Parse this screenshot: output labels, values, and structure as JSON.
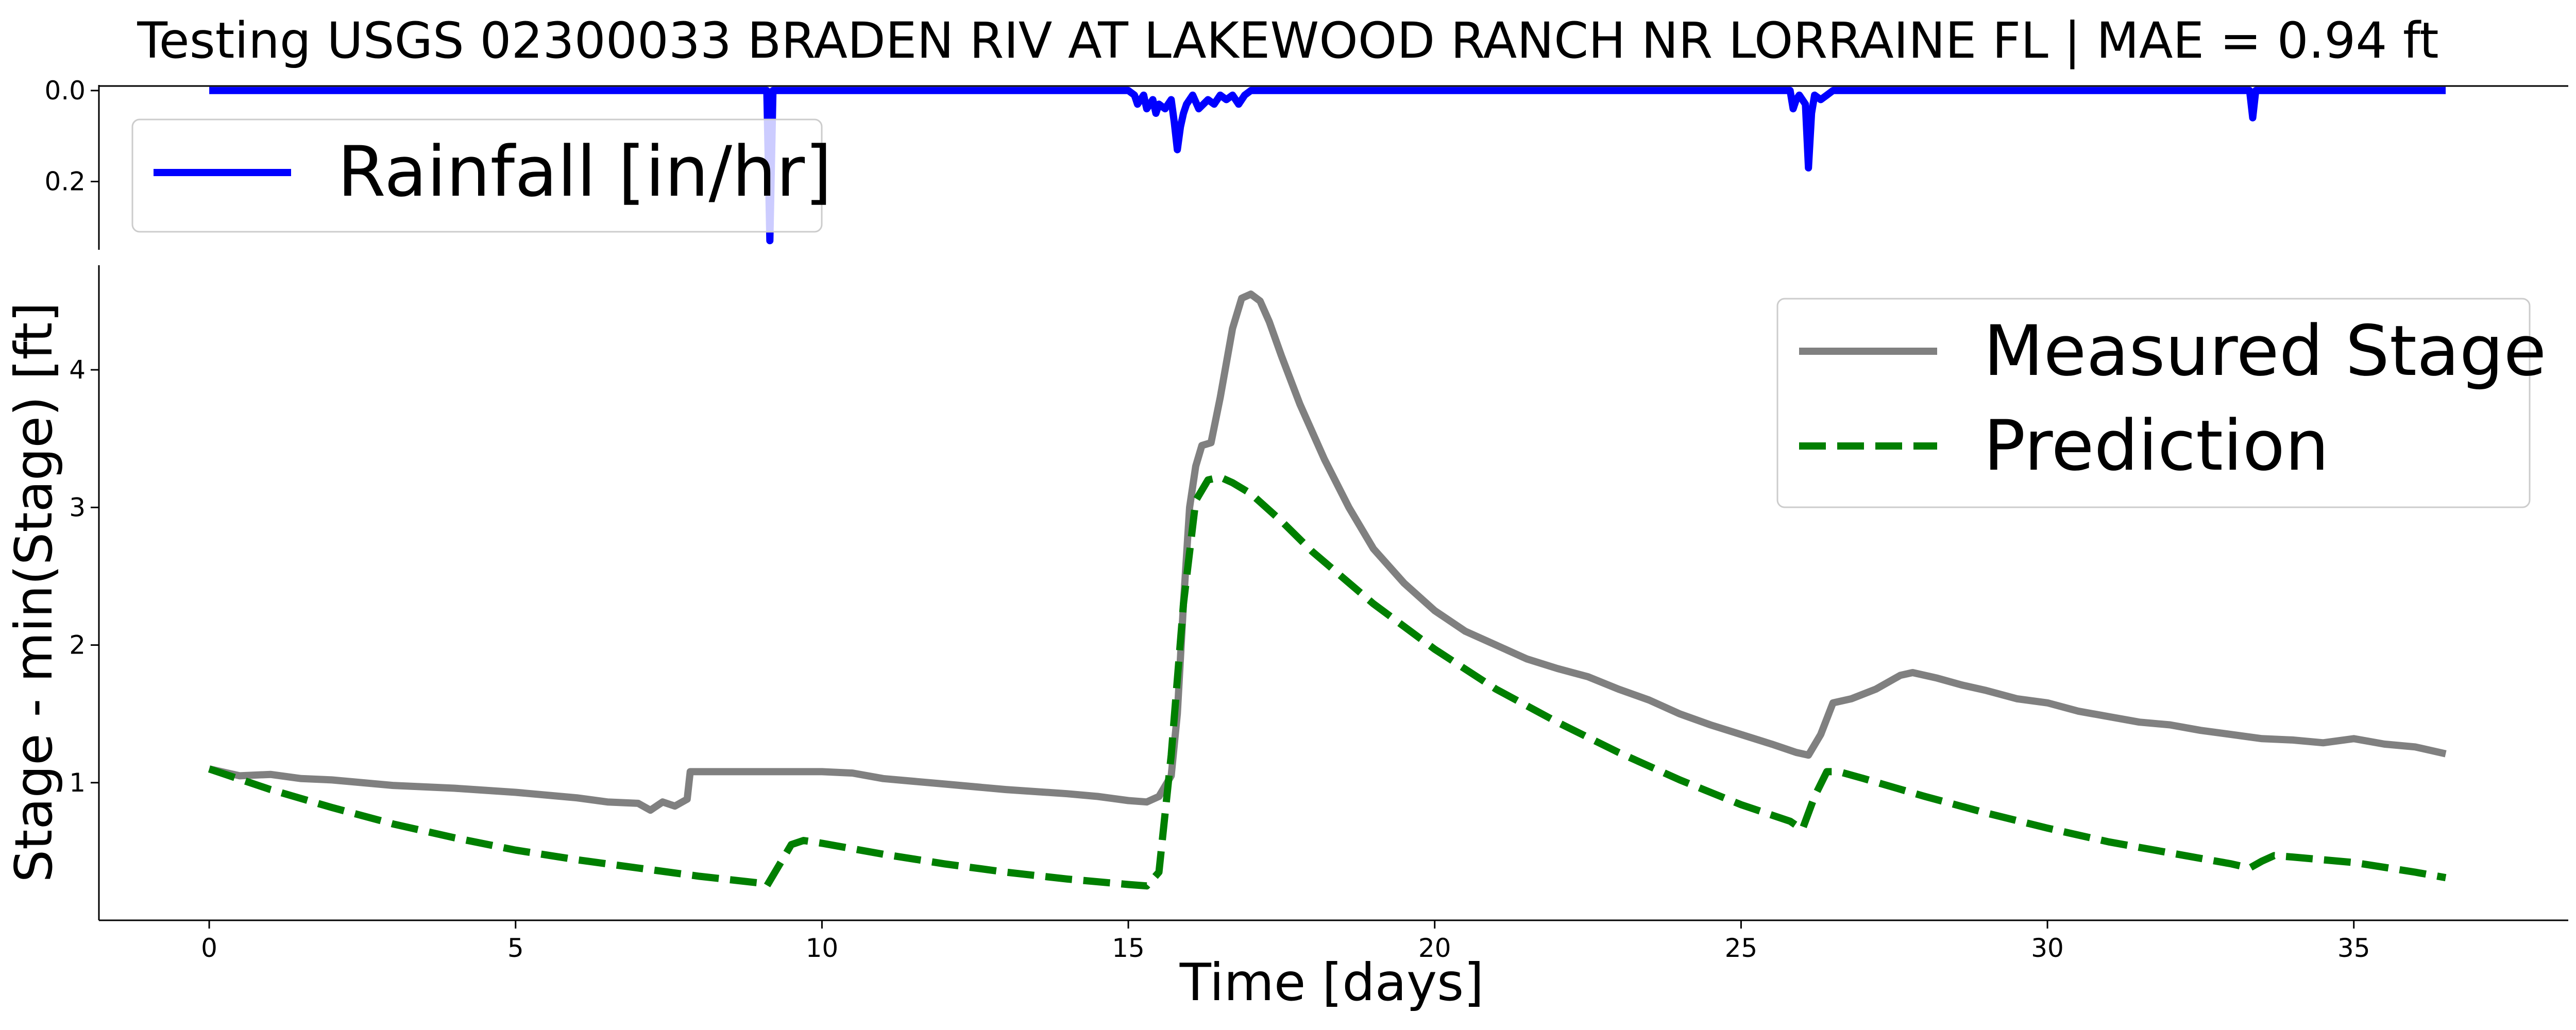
{
  "chart_data": [
    {
      "type": "line",
      "title": "Testing USGS 02300033 BRADEN RIV AT LAKEWOOD RANCH NR LORRAINE FL | MAE = 0.94 ft",
      "ylabel": "",
      "xlim": [
        -1.8,
        38.5
      ],
      "ylim": [
        0.35,
        -0.01
      ],
      "y_inverted": true,
      "yticks": [
        "0.0",
        "0.2"
      ],
      "legend": "upper-left",
      "series": [
        {
          "name": "Rainfall [in/hr]",
          "color": "#0000ff",
          "x": [
            0,
            9.1,
            9.15,
            9.2,
            15.0,
            15.1,
            15.15,
            15.25,
            15.3,
            15.4,
            15.45,
            15.5,
            15.6,
            15.7,
            15.75,
            15.8,
            15.85,
            15.9,
            15.95,
            16.05,
            16.15,
            16.3,
            16.4,
            16.5,
            16.6,
            16.7,
            16.8,
            16.9,
            17.0,
            25.8,
            25.85,
            25.9,
            25.95,
            26.05,
            26.1,
            26.15,
            26.2,
            26.3,
            26.4,
            26.5,
            33.3,
            33.35,
            33.4,
            36.5
          ],
          "values": [
            0,
            0,
            0.33,
            0,
            0,
            0.01,
            0.03,
            0.01,
            0.04,
            0.02,
            0.05,
            0.03,
            0.04,
            0.02,
            0.07,
            0.13,
            0.08,
            0.05,
            0.03,
            0.01,
            0.04,
            0.02,
            0.03,
            0.01,
            0.02,
            0.01,
            0.03,
            0.01,
            0,
            0,
            0.04,
            0.02,
            0.01,
            0.03,
            0.17,
            0.05,
            0.01,
            0.02,
            0.01,
            0,
            0,
            0.06,
            0,
            0
          ]
        }
      ]
    },
    {
      "type": "line",
      "title": "",
      "xlabel": "Time [days]",
      "ylabel": "Stage - min(Stage) [ft]",
      "xlim": [
        -1.8,
        38.5
      ],
      "ylim": [
        0.0,
        4.76
      ],
      "xticks": [
        "0",
        "5",
        "10",
        "15",
        "20",
        "25",
        "30",
        "35"
      ],
      "yticks": [
        "1",
        "2",
        "3",
        "4"
      ],
      "legend": "upper-right",
      "series": [
        {
          "name": "Measured Stage",
          "color": "#808080",
          "style": "solid",
          "x": [
            0,
            0.5,
            1,
            1.5,
            2,
            3,
            4,
            5,
            6,
            6.5,
            7,
            7.2,
            7.4,
            7.6,
            7.8,
            7.85,
            9,
            10,
            10.5,
            11,
            12,
            13,
            14,
            14.5,
            15,
            15.3,
            15.5,
            15.7,
            15.8,
            15.9,
            16,
            16.1,
            16.2,
            16.35,
            16.5,
            16.7,
            16.85,
            17.0,
            17.15,
            17.3,
            17.5,
            17.8,
            18.2,
            18.6,
            19.0,
            19.5,
            20.0,
            20.5,
            21.0,
            21.5,
            22,
            22.5,
            23,
            23.5,
            24,
            24.5,
            25,
            25.5,
            25.9,
            26.1,
            26.3,
            26.5,
            26.8,
            27.2,
            27.6,
            27.8,
            28.2,
            28.6,
            29,
            29.5,
            30,
            30.5,
            31,
            31.5,
            32,
            32.5,
            33,
            33.5,
            34,
            34.5,
            35,
            35.5,
            36,
            36.5
          ],
          "values": [
            1.1,
            1.05,
            1.06,
            1.03,
            1.02,
            0.98,
            0.96,
            0.93,
            0.89,
            0.86,
            0.85,
            0.8,
            0.86,
            0.83,
            0.88,
            1.08,
            1.08,
            1.08,
            1.07,
            1.03,
            0.99,
            0.95,
            0.92,
            0.9,
            0.87,
            0.86,
            0.9,
            1.05,
            1.5,
            2.3,
            3.0,
            3.3,
            3.45,
            3.47,
            3.8,
            4.3,
            4.52,
            4.55,
            4.5,
            4.35,
            4.1,
            3.75,
            3.35,
            3.0,
            2.7,
            2.45,
            2.25,
            2.1,
            2.0,
            1.9,
            1.83,
            1.77,
            1.68,
            1.6,
            1.5,
            1.42,
            1.35,
            1.28,
            1.22,
            1.2,
            1.35,
            1.58,
            1.61,
            1.68,
            1.78,
            1.8,
            1.76,
            1.71,
            1.67,
            1.61,
            1.58,
            1.52,
            1.48,
            1.44,
            1.42,
            1.38,
            1.35,
            1.32,
            1.31,
            1.29,
            1.32,
            1.28,
            1.26,
            1.21
          ]
        },
        {
          "name": "Prediction",
          "color": "#007f00",
          "style": "dashed",
          "x": [
            0,
            1,
            2,
            3,
            4,
            5,
            6,
            7,
            8,
            9,
            9.1,
            9.3,
            9.5,
            9.7,
            10,
            11,
            12,
            13,
            14,
            15,
            15.3,
            15.5,
            15.7,
            15.9,
            16.1,
            16.3,
            16.5,
            16.7,
            17,
            17.5,
            18,
            19,
            20,
            21,
            22,
            23,
            24,
            25,
            25.8,
            26.0,
            26.2,
            26.4,
            26.6,
            27,
            28,
            29,
            30,
            31,
            32,
            33,
            33.3,
            33.5,
            33.7,
            34,
            35,
            36,
            36.5
          ],
          "values": [
            1.1,
            0.95,
            0.82,
            0.7,
            0.6,
            0.51,
            0.44,
            0.38,
            0.32,
            0.27,
            0.25,
            0.4,
            0.55,
            0.58,
            0.56,
            0.48,
            0.41,
            0.35,
            0.3,
            0.26,
            0.25,
            0.35,
            1.2,
            2.3,
            3.05,
            3.2,
            3.22,
            3.18,
            3.1,
            2.9,
            2.68,
            2.3,
            1.97,
            1.68,
            1.44,
            1.22,
            1.02,
            0.84,
            0.72,
            0.66,
            0.9,
            1.08,
            1.08,
            1.03,
            0.9,
            0.78,
            0.67,
            0.57,
            0.49,
            0.41,
            0.38,
            0.43,
            0.47,
            0.46,
            0.42,
            0.35,
            0.31
          ]
        }
      ]
    }
  ]
}
